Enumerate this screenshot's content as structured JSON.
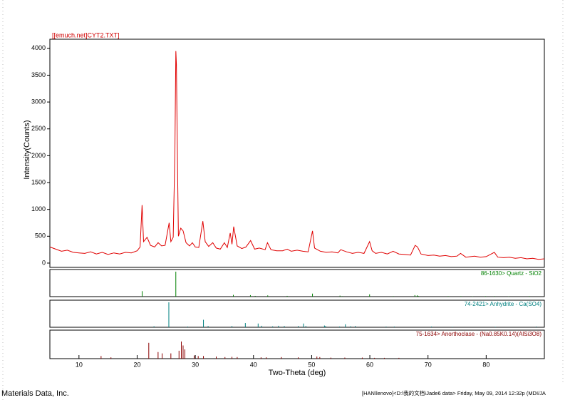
{
  "chart_data": [
    {
      "type": "line",
      "title": "[[emuch.net]CYT2.TXT]",
      "y_label": "Intensity(Counts)",
      "xlim": [
        5,
        90
      ],
      "ylim": [
        -80,
        4170
      ],
      "yticks": [
        0,
        500,
        1000,
        1500,
        2000,
        2500,
        3000,
        3500,
        4000
      ],
      "x": [
        5,
        6,
        7,
        8,
        9,
        10,
        11,
        12,
        13,
        14,
        15,
        16,
        17,
        18,
        19,
        20,
        20.5,
        20.85,
        21.1,
        21.7,
        22.3,
        23,
        23.6,
        24.2,
        24.8,
        25.5,
        25.8,
        26.2,
        26.5,
        26.65,
        26.75,
        26.9,
        27.1,
        27.5,
        27.9,
        28.4,
        29,
        29.5,
        30,
        30.6,
        31.3,
        31.7,
        32.3,
        33,
        33.6,
        34.3,
        35,
        35.5,
        36,
        36.3,
        36.6,
        37.2,
        38,
        38.7,
        39.5,
        40.2,
        41,
        42,
        42.4,
        43,
        44,
        45,
        45.8,
        46.5,
        47.5,
        48.5,
        49.4,
        50.15,
        50.5,
        51.5,
        52.5,
        53.5,
        54.5,
        55,
        56,
        57,
        58,
        59,
        59.95,
        60.4,
        61,
        62,
        63,
        64,
        65,
        66,
        67,
        67.8,
        68.2,
        68.8,
        70,
        71,
        72,
        73,
        74,
        75,
        75.6,
        76.5,
        78,
        79,
        80,
        81.4,
        82,
        83,
        84,
        85,
        86,
        87,
        88,
        89,
        90
      ],
      "series": [
        {
          "color": "#e00000",
          "values": [
            300,
            260,
            220,
            240,
            200,
            190,
            180,
            210,
            170,
            200,
            160,
            190,
            170,
            200,
            190,
            230,
            300,
            1080,
            400,
            480,
            330,
            300,
            380,
            320,
            330,
            750,
            400,
            480,
            2100,
            3950,
            3700,
            2200,
            500,
            650,
            600,
            380,
            320,
            380,
            300,
            290,
            780,
            400,
            310,
            380,
            280,
            260,
            380,
            290,
            560,
            350,
            680,
            320,
            270,
            300,
            420,
            260,
            280,
            250,
            380,
            250,
            230,
            230,
            260,
            220,
            240,
            220,
            210,
            600,
            280,
            220,
            200,
            210,
            190,
            250,
            210,
            180,
            200,
            180,
            400,
            230,
            180,
            200,
            170,
            220,
            170,
            160,
            150,
            330,
            300,
            170,
            140,
            150,
            130,
            140,
            120,
            130,
            180,
            110,
            130,
            110,
            120,
            200,
            110,
            100,
            110,
            90,
            100,
            80,
            90,
            70,
            80
          ]
        }
      ]
    },
    {
      "type": "stick",
      "title": "86-1630> Quartz - SiO2",
      "color": "#008000",
      "xlim": [
        5,
        90
      ],
      "ylim": [
        0,
        100
      ],
      "x": [
        20.86,
        26.65,
        36.54,
        39.47,
        40.29,
        42.45,
        45.79,
        50.14,
        54.87,
        55.33,
        59.96,
        64.03,
        67.74,
        68.14,
        68.32,
        73.47,
        75.66,
        77.68,
        79.88,
        81.49,
        83.84,
        87.44
      ],
      "values": [
        22,
        100,
        7,
        6,
        3,
        5,
        3,
        12,
        4,
        2,
        9,
        2,
        6,
        5,
        3,
        2,
        2,
        1,
        2,
        2,
        1,
        2
      ]
    },
    {
      "type": "stick",
      "title": "74-2421> Anhydrite - Ca(SO4)",
      "color": "#008080",
      "xlim": [
        5,
        90
      ],
      "ylim": [
        0,
        100
      ],
      "x": [
        22.9,
        25.45,
        28.7,
        31.4,
        32.2,
        36.3,
        38.6,
        40.8,
        41.4,
        43.3,
        44.3,
        45.3,
        47.7,
        48.6,
        49.0,
        52.2,
        52.4,
        54.8,
        55.8,
        56.7,
        57.5,
        62.8,
        64.2,
        70.6,
        74.2,
        81.6,
        88.6
      ],
      "values": [
        4,
        100,
        3,
        30,
        5,
        5,
        17,
        15,
        6,
        4,
        6,
        5,
        5,
        15,
        5,
        7,
        5,
        3,
        12,
        4,
        5,
        3,
        3,
        3,
        2,
        2,
        3
      ]
    },
    {
      "type": "stick",
      "title": "75-1634> Anorthoclase - (Na0.85K0.14)(AlSi3O8)",
      "color": "#8b0000",
      "xlim": [
        5,
        90
      ],
      "ylim": [
        0,
        100
      ],
      "x_label": "Two-Theta (deg)",
      "xticks": [
        10,
        20,
        30,
        40,
        50,
        60,
        70,
        80
      ],
      "x": [
        13.8,
        15.5,
        22.0,
        23.6,
        24.3,
        25.8,
        27.2,
        27.6,
        27.9,
        28.2,
        29.8,
        30.5,
        31.4,
        33.6,
        35.1,
        36.3,
        37.2,
        41.3,
        42.2,
        44.8,
        47.7,
        50.9,
        51.4,
        53.3,
        55.7,
        58.7,
        60.8,
        62.5,
        65.0
      ],
      "values": [
        10,
        5,
        60,
        25,
        20,
        20,
        30,
        65,
        50,
        35,
        12,
        10,
        10,
        8,
        6,
        7,
        6,
        5,
        5,
        6,
        5,
        8,
        6,
        4,
        4,
        4,
        3,
        3,
        3
      ]
    },
    {
      "type": "footer"
    }
  ],
  "footer": {
    "left": "Materials Data, Inc.",
    "right": "[HAN\\lenovo]<D:\\我的文档\\Jade6 data> Friday, May 09, 2014 12:32p (MDI/JA"
  }
}
